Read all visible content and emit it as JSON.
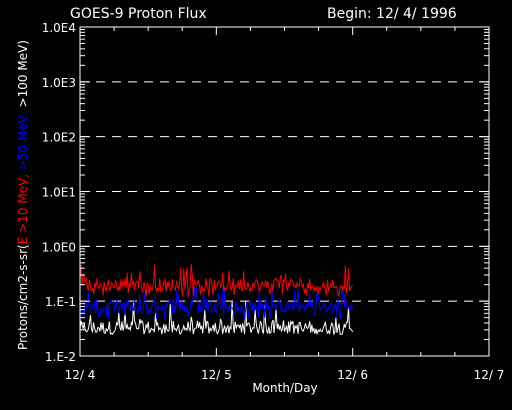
{
  "chart_data": {
    "type": "line",
    "title": "GOES-9 Proton Flux",
    "begin_label": "Begin: 12/ 4/ 1996",
    "xlabel": "Month/Day",
    "ylabel": {
      "prefix": "Protons/cm2-s-sr(",
      "part1": "E >10 MeV, ",
      "part2": ">50 MeV, ",
      "part3": ">100 MeV)"
    },
    "x_ticks": [
      "12/ 4",
      "12/ 5",
      "12/ 6",
      "12/ 7"
    ],
    "xlim_days": [
      0,
      3
    ],
    "y_scale": "log",
    "ylim": [
      0.01,
      10000
    ],
    "y_ticks": [
      {
        "value": 10000,
        "label": "1.0E4"
      },
      {
        "value": 1000,
        "label": "1.0E3"
      },
      {
        "value": 100,
        "label": "1.0E2"
      },
      {
        "value": 10,
        "label": "1.0E1"
      },
      {
        "value": 1,
        "label": "1.0E0"
      },
      {
        "value": 0.1,
        "label": "1.E-1"
      },
      {
        "value": 0.01,
        "label": "1.E-2"
      }
    ],
    "grid": "dashed horizontal at decades 0.1-1000",
    "series": [
      {
        "name": ">10 MeV",
        "color": "#ff0000",
        "x_days": [
          0.0,
          2.0
        ],
        "y_min": 0.12,
        "y_max": 0.5,
        "y_typical": 0.2
      },
      {
        "name": ">50 MeV",
        "color": "#0000ff",
        "x_days": [
          0.0,
          2.0
        ],
        "y_min": 0.045,
        "y_max": 0.2,
        "y_typical": 0.08
      },
      {
        "name": ">100 MeV",
        "color": "#ffffff",
        "x_days": [
          0.0,
          2.0
        ],
        "y_min": 0.025,
        "y_max": 0.1,
        "y_typical": 0.033
      }
    ]
  }
}
